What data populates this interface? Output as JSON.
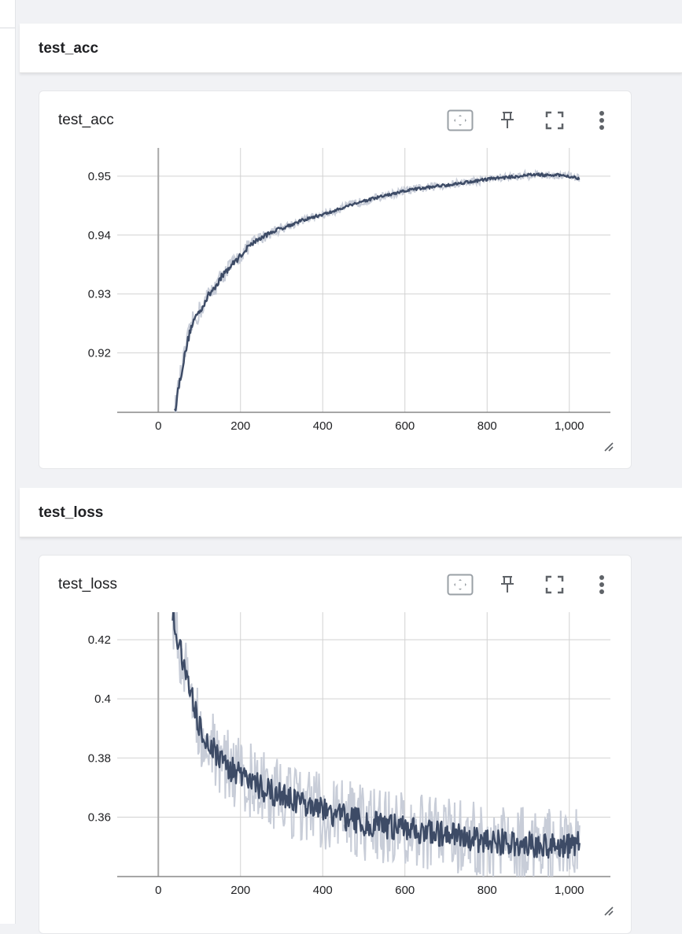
{
  "sections": [
    {
      "header": "test_acc",
      "card_title": "test_acc"
    },
    {
      "header": "test_loss",
      "card_title": "test_loss"
    }
  ],
  "icons": {
    "fit": "fit-domain-icon",
    "pin": "pin-icon",
    "fullscreen": "fullscreen-icon",
    "more": "more-vert-icon",
    "resize": "resize-handle-icon"
  },
  "colors": {
    "smoothed": "#3d4b66",
    "raw": "#c8cdd8",
    "grid": "#d2d2d2"
  },
  "chart_data": [
    {
      "type": "line",
      "title": "test_acc",
      "xlim": [
        -100,
        1100
      ],
      "ylim": [
        0.9099,
        0.9548
      ],
      "x_ticks": [
        0,
        200,
        400,
        600,
        800,
        1000
      ],
      "x_tick_labels": [
        "0",
        "200",
        "400",
        "600",
        "800",
        "1,000"
      ],
      "y_ticks": [
        0.92,
        0.93,
        0.94,
        0.95
      ],
      "y_tick_labels": [
        "0.92",
        "0.93",
        "0.94",
        "0.95"
      ],
      "grid": true,
      "series": [
        {
          "x": [
            40,
            50,
            60,
            70,
            80,
            90,
            100,
            120,
            140,
            160,
            180,
            200,
            225,
            250,
            275,
            300,
            325,
            350,
            375,
            400,
            425,
            450,
            475,
            500,
            525,
            550,
            575,
            600,
            625,
            650,
            675,
            700,
            725,
            750,
            775,
            800,
            825,
            850,
            875,
            900,
            925,
            950,
            975,
            1000,
            1025
          ],
          "y": [
            0.91,
            0.9145,
            0.918,
            0.9215,
            0.9245,
            0.926,
            0.927,
            0.9295,
            0.9315,
            0.9335,
            0.935,
            0.9365,
            0.9385,
            0.9395,
            0.9405,
            0.9412,
            0.9418,
            0.9425,
            0.943,
            0.9435,
            0.944,
            0.9447,
            0.9453,
            0.9458,
            0.9462,
            0.9467,
            0.947,
            0.9475,
            0.9478,
            0.948,
            0.9483,
            0.9485,
            0.9487,
            0.949,
            0.9492,
            0.9495,
            0.9497,
            0.9498,
            0.95,
            0.9502,
            0.9503,
            0.9501,
            0.9502,
            0.95,
            0.9496
          ]
        }
      ]
    },
    {
      "type": "line",
      "title": "test_loss",
      "xlim": [
        -100,
        1100
      ],
      "ylim": [
        0.3399,
        0.4293
      ],
      "x_ticks": [
        0,
        200,
        400,
        600,
        800,
        1000
      ],
      "x_tick_labels": [
        "0",
        "200",
        "400",
        "600",
        "800",
        "1,000"
      ],
      "y_ticks": [
        0.36,
        0.38,
        0.4,
        0.42
      ],
      "y_tick_labels": [
        "0.36",
        "0.38",
        "0.4",
        "0.42"
      ],
      "grid": true,
      "series": [
        {
          "x": [
            35,
            50,
            60,
            70,
            80,
            90,
            100,
            120,
            140,
            160,
            180,
            200,
            250,
            300,
            350,
            400,
            450,
            500,
            550,
            600,
            650,
            700,
            750,
            800,
            850,
            900,
            950,
            1000,
            1025
          ],
          "y": [
            0.43,
            0.418,
            0.412,
            0.406,
            0.401,
            0.396,
            0.391,
            0.386,
            0.382,
            0.379,
            0.376,
            0.374,
            0.37,
            0.367,
            0.364,
            0.362,
            0.36,
            0.358,
            0.357,
            0.356,
            0.355,
            0.354,
            0.353,
            0.352,
            0.3515,
            0.351,
            0.3505,
            0.3505,
            0.351
          ]
        }
      ]
    }
  ]
}
